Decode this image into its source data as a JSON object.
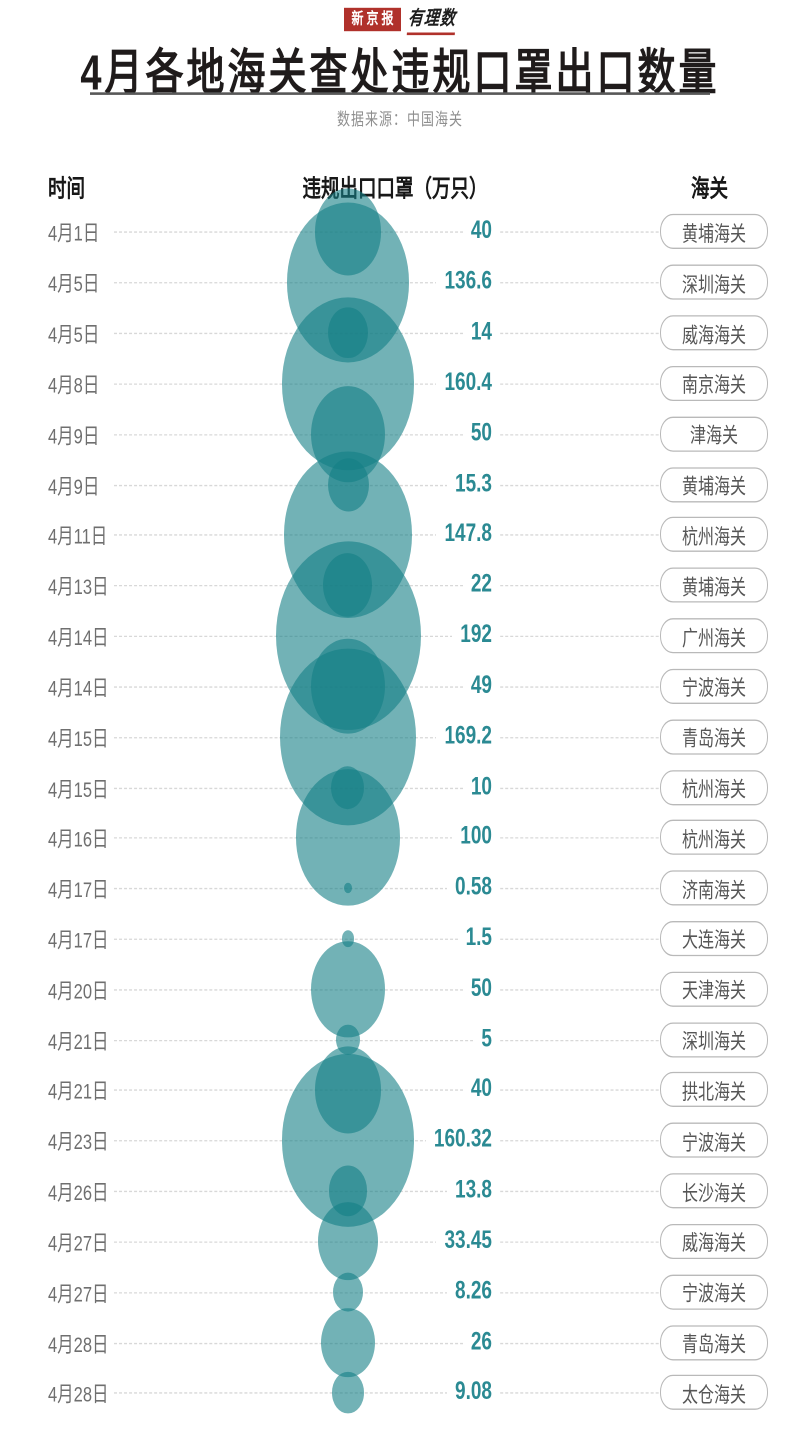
{
  "masthead": {
    "brand_box": "新京报",
    "brand_script": "有理数"
  },
  "header": {
    "title": "4月各地海关查处违规口罩出口数量",
    "source": "数据来源：中国海关"
  },
  "columns": {
    "time": "时间",
    "value": "违规出口口罩（万只）",
    "customs": "海关"
  },
  "colors": {
    "page_bg": "#ffffff",
    "brand": "#b0312b",
    "title_text": "#1f1b1b",
    "rule": "#585858",
    "source_text": "#8f8f8f",
    "header_text": "#181818",
    "date_text": "#6f6f6f",
    "dash": "#d8d8d8",
    "bubble_hex": "#147f85",
    "bubble_rgba": "rgba(20,127,133,0.6)",
    "value_text": "#2b8a93",
    "pill_border": "#b9b9b9",
    "pill_text": "#565656"
  },
  "chart_data": {
    "type": "bubble",
    "title": "4月各地海关查处违规口罩出口数量",
    "source": "数据来源：中国海关",
    "columns": [
      "时间",
      "违规出口口罩（万只）",
      "海关"
    ],
    "unit": "万只",
    "legend": "none",
    "layout": "vertical list, one bubble per row, bubble diameter proportional to sqrt(value), bubbles column centered, values right-aligned, customs names in rounded outline pills",
    "rows": [
      {
        "date": "4月1日",
        "value": "40",
        "customs": "黄埔海关"
      },
      {
        "date": "4月5日",
        "value": "136.6",
        "customs": "深圳海关"
      },
      {
        "date": "4月5日",
        "value": "14",
        "customs": "威海海关"
      },
      {
        "date": "4月8日",
        "value": "160.4",
        "customs": "南京海关"
      },
      {
        "date": "4月9日",
        "value": "50",
        "customs": "津海关"
      },
      {
        "date": "4月9日",
        "value": "15.3",
        "customs": "黄埔海关"
      },
      {
        "date": "4月11日",
        "value": "147.8",
        "customs": "杭州海关"
      },
      {
        "date": "4月13日",
        "value": "22",
        "customs": "黄埔海关"
      },
      {
        "date": "4月14日",
        "value": "192",
        "customs": "广州海关"
      },
      {
        "date": "4月14日",
        "value": "49",
        "customs": "宁波海关"
      },
      {
        "date": "4月15日",
        "value": "169.2",
        "customs": "青岛海关"
      },
      {
        "date": "4月15日",
        "value": "10",
        "customs": "杭州海关"
      },
      {
        "date": "4月16日",
        "value": "100",
        "customs": "杭州海关"
      },
      {
        "date": "4月17日",
        "value": "0.58",
        "customs": "济南海关"
      },
      {
        "date": "4月17日",
        "value": "1.5",
        "customs": "大连海关"
      },
      {
        "date": "4月20日",
        "value": "50",
        "customs": "天津海关"
      },
      {
        "date": "4月21日",
        "value": "5",
        "customs": "深圳海关"
      },
      {
        "date": "4月21日",
        "value": "40",
        "customs": "拱北海关"
      },
      {
        "date": "4月23日",
        "value": "160.32",
        "customs": "宁波海关"
      },
      {
        "date": "4月26日",
        "value": "13.8",
        "customs": "长沙海关"
      },
      {
        "date": "4月27日",
        "value": "33.45",
        "customs": "威海海关"
      },
      {
        "date": "4月27日",
        "value": "8.26",
        "customs": "宁波海关"
      },
      {
        "date": "4月28日",
        "value": "26",
        "customs": "青岛海关"
      },
      {
        "date": "4月28日",
        "value": "9.08",
        "customs": "太仓海关"
      }
    ]
  }
}
